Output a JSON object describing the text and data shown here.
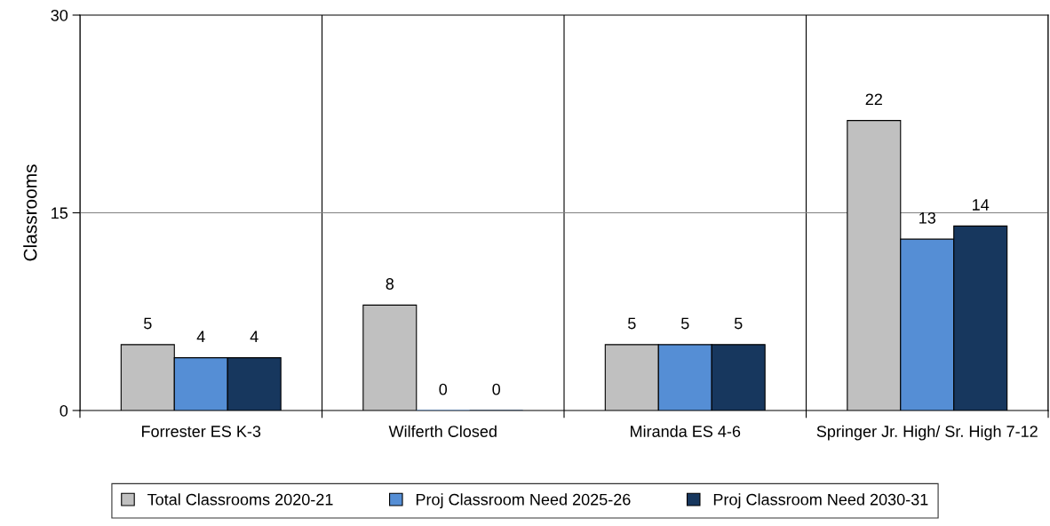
{
  "chart_data": {
    "type": "bar",
    "ylabel": "Classrooms",
    "categories": [
      "Forrester ES K-3",
      "Wilferth Closed",
      "Miranda ES 4-6",
      "Springer Jr. High/ Sr. High 7-12"
    ],
    "series": [
      {
        "name": "Total Classrooms 2020-21",
        "color": "#c0c0c0",
        "values": [
          5,
          8,
          5,
          22
        ]
      },
      {
        "name": "Proj Classroom Need 2025-26",
        "color": "#558ed5",
        "values": [
          4,
          0,
          5,
          13
        ]
      },
      {
        "name": "Proj Classroom Need 2030-31",
        "color": "#17375e",
        "values": [
          4,
          0,
          5,
          14
        ]
      }
    ],
    "ylim": [
      0,
      30
    ],
    "yticks": [
      0,
      15,
      30
    ],
    "grid": "x",
    "ref_lines": [
      {
        "axis": "y",
        "value": 15,
        "color": "#808080"
      }
    ],
    "legend": "bottom",
    "data_labels": true
  }
}
